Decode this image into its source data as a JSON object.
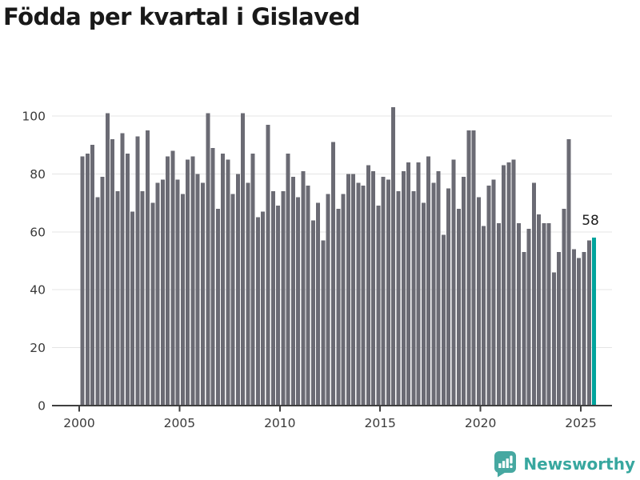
{
  "title": "Födda per kvartal i Gislaved",
  "chart_data": {
    "type": "bar",
    "title": "Födda per kvartal i Gislaved",
    "xlabel": "",
    "ylabel": "",
    "ylim": [
      0,
      105
    ],
    "yticks": [
      0,
      20,
      40,
      60,
      80,
      100
    ],
    "xticks": [
      2000,
      2005,
      2010,
      2015,
      2020,
      2025
    ],
    "grid": true,
    "legend_position": "none",
    "bar_color": "#6b6b74",
    "highlight_color": "#00a39c",
    "axis_color": "#3f3f3f",
    "grid_color": "#e4e4e4",
    "tick_label_color": "#3a3a3a",
    "annotation_color": "#1c1c1c",
    "series": [
      {
        "year": 2000,
        "values": [
          86,
          87,
          90,
          72
        ]
      },
      {
        "year": 2001,
        "values": [
          79,
          101,
          92,
          74
        ]
      },
      {
        "year": 2002,
        "values": [
          94,
          87,
          67,
          93
        ]
      },
      {
        "year": 2003,
        "values": [
          74,
          95,
          70,
          77
        ]
      },
      {
        "year": 2004,
        "values": [
          78,
          86,
          88,
          78
        ]
      },
      {
        "year": 2005,
        "values": [
          73,
          85,
          86,
          80
        ]
      },
      {
        "year": 2006,
        "values": [
          77,
          101,
          89,
          68
        ]
      },
      {
        "year": 2007,
        "values": [
          87,
          85,
          73,
          80
        ]
      },
      {
        "year": 2008,
        "values": [
          101,
          77,
          87,
          65
        ]
      },
      {
        "year": 2009,
        "values": [
          67,
          97,
          74,
          69
        ]
      },
      {
        "year": 2010,
        "values": [
          74,
          87,
          79,
          72
        ]
      },
      {
        "year": 2011,
        "values": [
          81,
          76,
          64,
          70
        ]
      },
      {
        "year": 2012,
        "values": [
          57,
          73,
          91,
          68
        ]
      },
      {
        "year": 2013,
        "values": [
          73,
          80,
          80,
          77
        ]
      },
      {
        "year": 2014,
        "values": [
          76,
          83,
          81,
          69
        ]
      },
      {
        "year": 2015,
        "values": [
          79,
          78,
          103,
          74
        ]
      },
      {
        "year": 2016,
        "values": [
          81,
          84,
          74,
          84
        ]
      },
      {
        "year": 2017,
        "values": [
          70,
          86,
          77,
          81
        ]
      },
      {
        "year": 2018,
        "values": [
          59,
          75,
          85,
          68
        ]
      },
      {
        "year": 2019,
        "values": [
          79,
          95,
          95,
          72
        ]
      },
      {
        "year": 2020,
        "values": [
          62,
          76,
          78,
          63
        ]
      },
      {
        "year": 2021,
        "values": [
          83,
          84,
          85,
          63
        ]
      },
      {
        "year": 2022,
        "values": [
          53,
          61,
          77,
          66
        ]
      },
      {
        "year": 2023,
        "values": [
          63,
          63,
          46,
          53
        ]
      },
      {
        "year": 2024,
        "values": [
          68,
          92,
          54,
          51
        ]
      },
      {
        "year": 2025,
        "values": [
          53,
          57,
          58
        ]
      }
    ],
    "highlight": {
      "year": 2025,
      "quarter": 3,
      "value": 58,
      "label": "58"
    }
  },
  "footer": {
    "brand": "Newsworthy",
    "brand_color": "#38a79f",
    "icon_color": "#46a8a1"
  }
}
